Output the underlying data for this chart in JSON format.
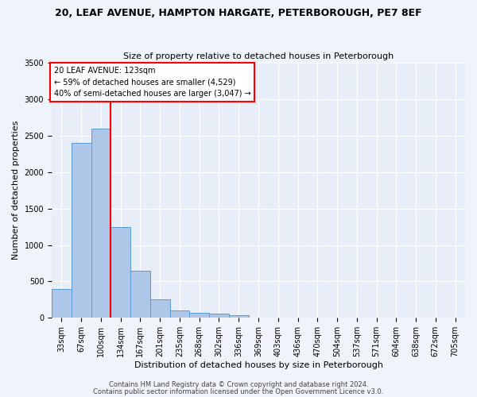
{
  "title1": "20, LEAF AVENUE, HAMPTON HARGATE, PETERBOROUGH, PE7 8EF",
  "title2": "Size of property relative to detached houses in Peterborough",
  "xlabel": "Distribution of detached houses by size in Peterborough",
  "ylabel": "Number of detached properties",
  "categories": [
    "33sqm",
    "67sqm",
    "100sqm",
    "134sqm",
    "167sqm",
    "201sqm",
    "235sqm",
    "268sqm",
    "302sqm",
    "336sqm",
    "369sqm",
    "403sqm",
    "436sqm",
    "470sqm",
    "504sqm",
    "537sqm",
    "571sqm",
    "604sqm",
    "638sqm",
    "672sqm",
    "705sqm"
  ],
  "values": [
    400,
    2400,
    2600,
    1250,
    650,
    250,
    100,
    70,
    60,
    40,
    0,
    0,
    0,
    0,
    0,
    0,
    0,
    0,
    0,
    0,
    0
  ],
  "bar_color": "#aec6e8",
  "bar_edge_color": "#5b9bd5",
  "red_line_index": 3,
  "ylim": [
    0,
    3500
  ],
  "yticks": [
    0,
    500,
    1000,
    1500,
    2000,
    2500,
    3000,
    3500
  ],
  "annotation_text": "20 LEAF AVENUE: 123sqm\n← 59% of detached houses are smaller (4,529)\n40% of semi-detached houses are larger (3,047) →",
  "footer1": "Contains HM Land Registry data © Crown copyright and database right 2024.",
  "footer2": "Contains public sector information licensed under the Open Government Licence v3.0.",
  "bg_color": "#f0f4fa",
  "plot_bg_color": "#e8eef8",
  "title1_fontsize": 9,
  "title2_fontsize": 8,
  "ylabel_fontsize": 8,
  "xlabel_fontsize": 8,
  "tick_fontsize": 7,
  "annotation_fontsize": 7,
  "footer_fontsize": 6
}
